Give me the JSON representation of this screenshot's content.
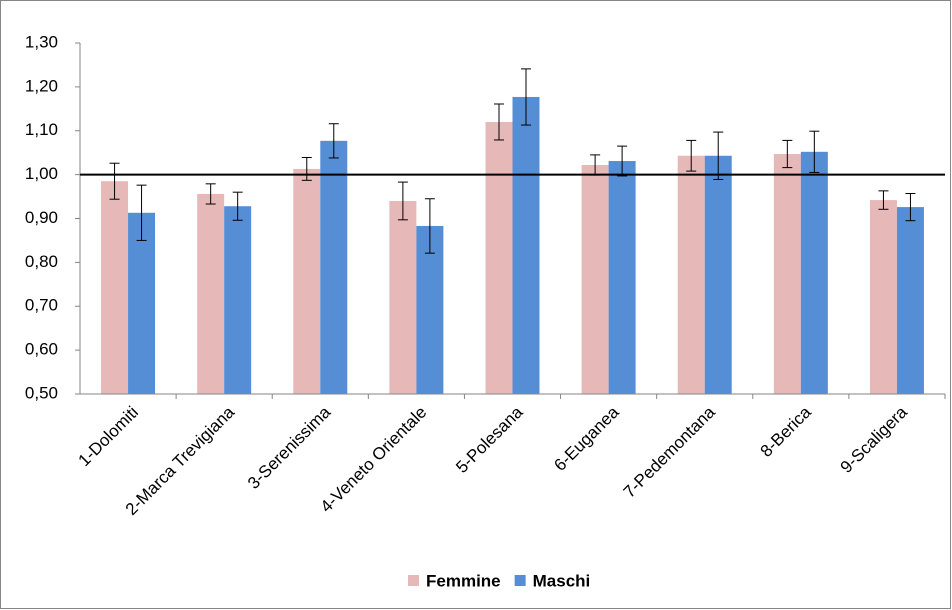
{
  "chart_data": {
    "type": "bar",
    "categories": [
      "1-Dolomiti",
      "2-Marca Trevigiana",
      "3-Serenissima",
      "4-Veneto Orientale",
      "5-Polesana",
      "6-Euganea",
      "7-Pedemontana",
      "8-Berica",
      "9-Scaligera"
    ],
    "series": [
      {
        "name": "Femmine",
        "color": "#e6b9b8",
        "values": [
          0.985,
          0.956,
          1.013,
          0.94,
          1.12,
          1.022,
          1.043,
          1.047,
          0.942
        ],
        "errors": [
          0.041,
          0.023,
          0.026,
          0.043,
          0.041,
          0.023,
          0.035,
          0.031,
          0.021
        ]
      },
      {
        "name": "Maschi",
        "color": "#558ed5",
        "values": [
          0.913,
          0.928,
          1.077,
          0.883,
          1.177,
          1.031,
          1.043,
          1.052,
          0.926
        ],
        "errors": [
          0.063,
          0.032,
          0.039,
          0.062,
          0.064,
          0.034,
          0.054,
          0.047,
          0.031
        ]
      }
    ],
    "ylim": [
      0.5,
      1.3
    ],
    "yticks": [
      {
        "value": 0.5,
        "label": "0,50"
      },
      {
        "value": 0.6,
        "label": "0,60"
      },
      {
        "value": 0.7,
        "label": "0,70"
      },
      {
        "value": 0.8,
        "label": "0,80"
      },
      {
        "value": 0.9,
        "label": "0,90"
      },
      {
        "value": 1.0,
        "label": "1,00"
      },
      {
        "value": 1.1,
        "label": "1,10"
      },
      {
        "value": 1.2,
        "label": "1,20"
      },
      {
        "value": 1.3,
        "label": "1,30"
      }
    ],
    "reference_line": 1.0,
    "legend": "bottom"
  }
}
